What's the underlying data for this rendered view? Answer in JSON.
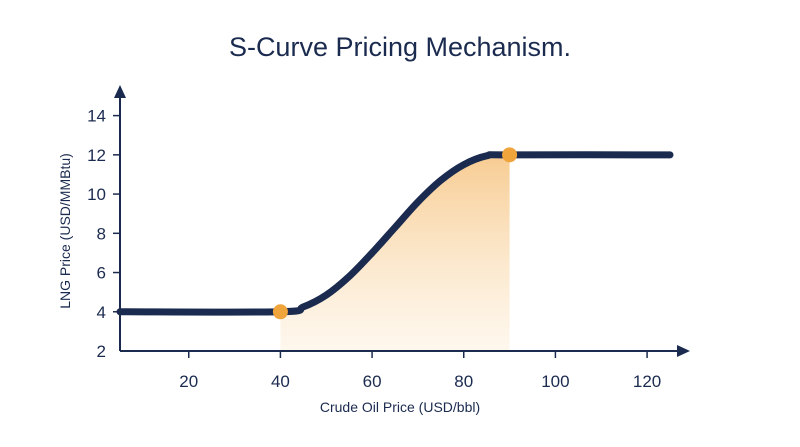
{
  "chart_data": {
    "type": "line",
    "title": "S-Curve Pricing Mechanism.",
    "xlabel": "Crude Oil Price (USD/bbl)",
    "ylabel": "LNG Price (USD/MMBtu)",
    "xlim": [
      5,
      125
    ],
    "ylim": [
      2,
      15
    ],
    "x_ticks": [
      20,
      40,
      60,
      80,
      100,
      120
    ],
    "y_ticks": [
      2,
      4,
      6,
      8,
      10,
      12,
      14
    ],
    "series": [
      {
        "x": [
          5,
          40,
          45,
          50,
          55,
          60,
          65,
          70,
          75,
          80,
          85,
          90,
          125
        ],
        "y": [
          4,
          4,
          4.25,
          4.85,
          5.8,
          7.0,
          8.3,
          9.6,
          10.7,
          11.5,
          11.95,
          12,
          12
        ],
        "color": "#1b2b4f"
      }
    ],
    "shaded_region": {
      "x_from": 40,
      "x_to": 90,
      "color": "#f7c98c"
    },
    "markers": [
      {
        "x": 40,
        "y": 4,
        "color": "#f0a43c"
      },
      {
        "x": 90,
        "y": 12,
        "color": "#f0a43c"
      }
    ],
    "grid": false,
    "legend": "none"
  }
}
